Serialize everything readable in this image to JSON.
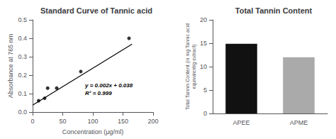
{
  "chart_data": [
    {
      "type": "scatter",
      "title": "Standard Curve of Tannic acid",
      "xlabel": "Concentration (μg/ml)",
      "ylabel": "Absorbance at 765 nm",
      "series": [
        {
          "type": "scatter",
          "color": "#000000",
          "x": [
            10,
            20,
            25,
            40,
            80,
            160
          ],
          "values": [
            0.062,
            0.075,
            0.13,
            0.13,
            0.22,
            0.4
          ]
        },
        {
          "type": "line",
          "color": "#000000",
          "x": [
            0,
            165
          ],
          "values": [
            0.038,
            0.368
          ]
        }
      ],
      "annotations": [
        "y = 0.002x + 0.038",
        "R² = 0.999"
      ],
      "xlim": [
        0,
        200
      ],
      "xticks": [
        0,
        50,
        100,
        150,
        200
      ],
      "ylim": [
        0.0,
        0.5
      ],
      "yticks": [
        {
          "value": 0.0,
          "label": "0.0"
        },
        0.1,
        0.2,
        0.3,
        0.4,
        0.5
      ]
    },
    {
      "type": "bar",
      "title": "Total Tannin Content",
      "ylabel": "Total Tannin Content (in mg Tannic acid\nequivalent/g extract)",
      "categories": [
        "APEE",
        "APME"
      ],
      "values": [
        14.9,
        12.0
      ],
      "colors": [
        "#111111",
        "#aaaaaa"
      ],
      "ylim": [
        0,
        20
      ],
      "yticks": [
        0,
        5,
        10,
        15,
        20
      ]
    }
  ]
}
